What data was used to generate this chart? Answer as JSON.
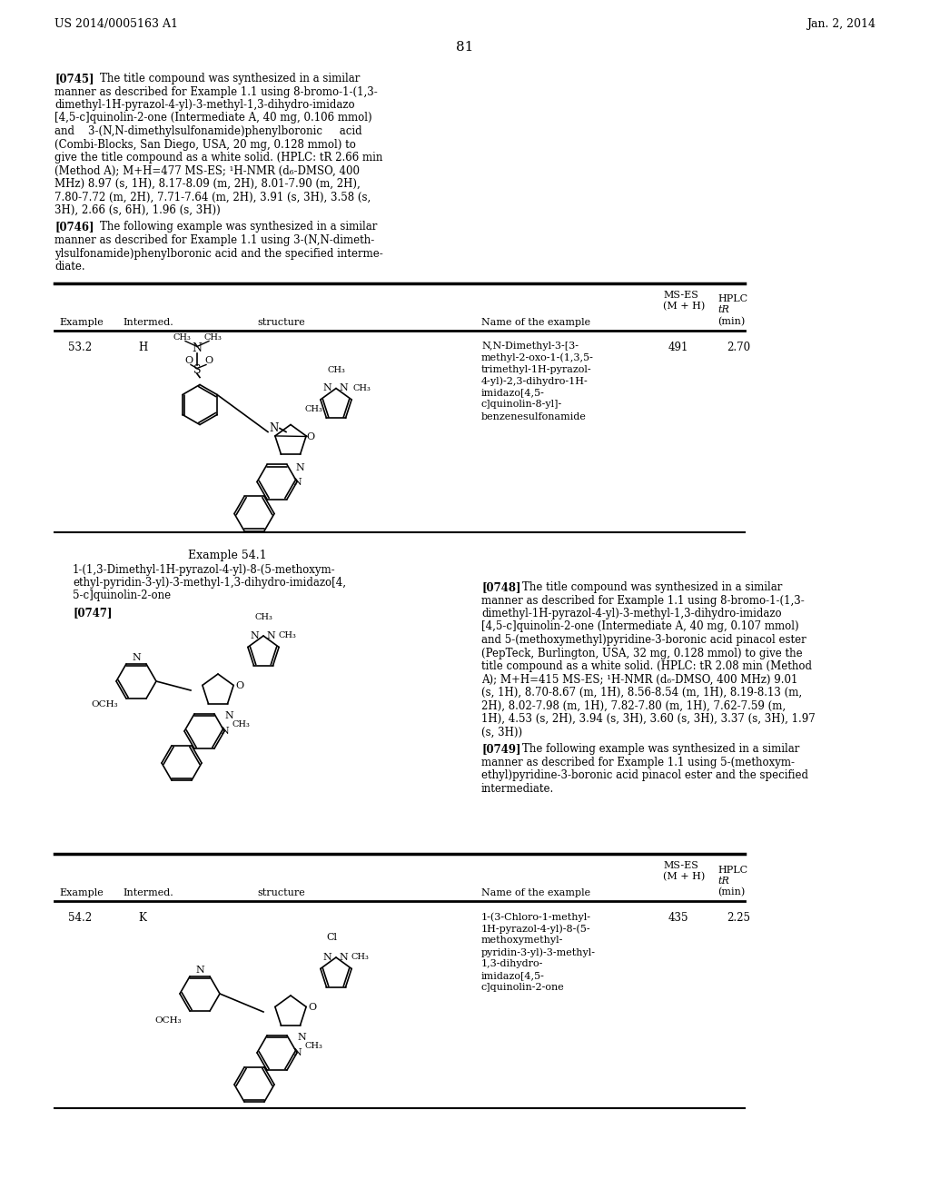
{
  "page_number": "81",
  "header_left": "US 2014/0005163 A1",
  "header_right": "Jan. 2, 2014",
  "background_color": "#ffffff",
  "text_color": "#000000",
  "para_0745": "[0745]  The title compound was synthesized in a similar manner as described for Example 1.1 using 8-bromo-1-(1,3-dimethyl-1H-pyrazol-4-yl)-3-methyl-1,3-dihydro-imidazo [4,5-c]quinolin-2-one (Intermediate A, 40 mg, 0.106 mmol) and 3-(N,N-dimethylsulfonamide)phenylboronic acid (Combi-Blocks, San Diego, USA, 20 mg, 0.128 mmol) to give the title compound as a white solid. (HPLC: tᴿ 2.66 min (Method A); M+H=477 MS-ES; ¹H-NMR (d₆-DMSO, 400 MHz) 8.97 (s, 1H), 8.17-8.09 (m, 2H), 8.01-7.90 (m, 2H), 7.80-7.72 (m, 2H), 7.71-7.64 (m, 2H), 3.91 (s, 3H), 3.58 (s, 3H), 2.66 (s, 6H), 1.96 (s, 3H))",
  "para_0746": "[0746]  The following example was synthesized in a similar manner as described for Example 1.1 using 3-(N,N-dimethylsulfonamide)phenylboronic acid and the specified intermediate.",
  "table1_cols": [
    "Example",
    "Intermed.",
    "structure",
    "Name of the example",
    "MS-ES\n(M + H)",
    "HPLC\ntᴿ\n(min)"
  ],
  "table1_row": [
    "53.2",
    "H",
    "",
    "N,N-Dimethyl-3-[3-methyl-2-oxo-1-(1,3,5-trimethyl-1H-pyrazol-4-yl)-2,3-dihydro-1H-imidazo[4,5-c]quinolin-8-yl]-benzenesulfonamide",
    "491",
    "2.70"
  ],
  "example_541_title": "Example 54.1",
  "example_541_name": "1-(1,3-Dimethyl-1H-pyrazol-4-yl)-8-(5-methoxymethyl-pyridin-3-yl)-3-methyl-1,3-dihydro-imidazo[4,5-c]quinolin-2-one",
  "para_0747_label": "[0747]",
  "para_0748": "[0748]  The title compound was synthesized in a similar manner as described for Example 1.1 using 8-bromo-1-(1,3-dimethyl-1H-pyrazol-4-yl)-3-methyl-1,3-dihydro-imidazo [4,5-c]quinolin-2-one (Intermediate A, 40 mg, 0.107 mmol) and 5-(methoxymethyl)pyridine-3-boronic acid pinacol ester (PepTeck, Burlington, USA, 32 mg, 0.128 mmol) to give the title compound as a white solid. (HPLC: tᴿ 2.08 min (Method A); M+H=415 MS-ES; ¹H-NMR (d₆-DMSO, 400 MHz) 9.01 (s, 1H), 8.70-8.67 (m, 1H), 8.56-8.54 (m, 1H), 8.19-8.13 (m, 2H), 8.02-7.98 (m, 1H), 7.82-7.80 (m, 1H), 7.62-7.59 (m, 1H), 4.53 (s, 2H), 3.94 (s, 3H), 3.60 (s, 3H), 3.37 (s, 3H), 1.97 (s, 3H))",
  "para_0749": "[0749]  The following example was synthesized in a similar manner as described for Example 1.1 using 5-(methoxymethyl)pyridine-3-boronic acid pinacol ester and the specified intermediate.",
  "table2_cols": [
    "Example",
    "Intermed.",
    "structure",
    "Name of the example",
    "MS-ES\n(M + H)",
    "HPLC\ntᴿ\n(min)"
  ],
  "table2_row": [
    "54.2",
    "K",
    "",
    "1-(3-Chloro-1-methyl-1H-pyrazol-4-yl)-8-(5-methoxymethyl-pyridin-3-yl)-3-methyl-1,3-dihydro-imidazo[4,5-c]quinolin-2-one",
    "435",
    "2.25"
  ]
}
